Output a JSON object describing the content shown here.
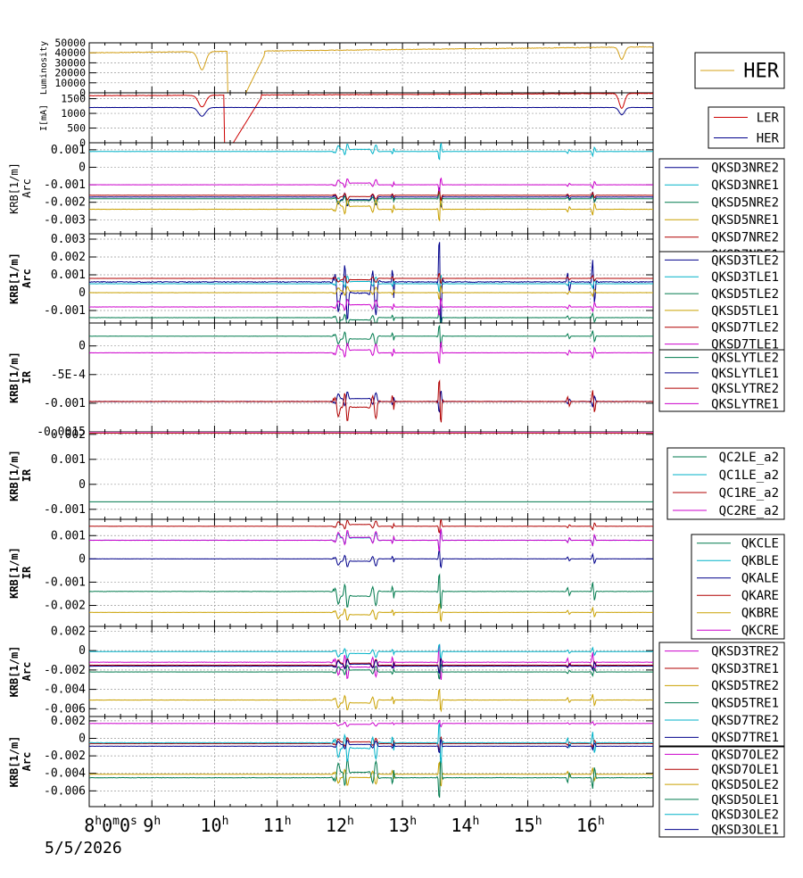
{
  "chart_data": {
    "type": "line",
    "time_axis": {
      "range_hours": [
        8,
        17
      ],
      "tick_labels": [
        {
          "h": 8,
          "text": "8",
          "sup": "h",
          "extra": "0",
          "extra_sup": "m",
          "extra2": "0",
          "extra2_sup": "s"
        },
        {
          "h": 9,
          "text": "9",
          "sup": "h"
        },
        {
          "h": 10,
          "text": "10",
          "sup": "h"
        },
        {
          "h": 11,
          "text": "11",
          "sup": "h"
        },
        {
          "h": 12,
          "text": "12",
          "sup": "h"
        },
        {
          "h": 13,
          "text": "13",
          "sup": "h"
        },
        {
          "h": 14,
          "text": "14",
          "sup": "h"
        },
        {
          "h": 15,
          "text": "15",
          "sup": "h"
        },
        {
          "h": 16,
          "text": "16",
          "sup": "h"
        }
      ],
      "date": "5/5/2026"
    },
    "panels": [
      {
        "id": "lum",
        "ylabel": [
          "Luminosity"
        ],
        "ylim": [
          0,
          50000
        ],
        "ticks": [
          0,
          10000,
          20000,
          30000,
          40000,
          50000
        ],
        "tick_labels": [
          "0",
          "10000",
          "20000",
          "30000",
          "40000",
          "50000"
        ],
        "series": [
          {
            "name": "HER",
            "color": "#d4a017",
            "base": 40000,
            "trend": 6000,
            "noise": 600,
            "seed": 3,
            "dips": [
              [
                9.8,
                0.08,
                -18000
              ]
            ],
            "gaps": [
              [
                10.2,
                10.5,
                0
              ]
            ],
            "ramp": [
              10.5,
              10.8,
              38000
            ],
            "late_dips": [
              [
                16.5,
                0.06,
                -12000
              ]
            ]
          }
        ],
        "legend": [
          "HER"
        ]
      },
      {
        "id": "cur",
        "ylabel": [
          "I[mA]"
        ],
        "ylim": [
          0,
          1700
        ],
        "ticks": [
          0,
          500,
          1000,
          1500
        ],
        "tick_labels": [
          "0",
          "500",
          "1000",
          "1500"
        ],
        "series": [
          {
            "name": "LER",
            "color": "#cc0000",
            "base": 1600,
            "trend": 80,
            "noise": 15,
            "seed": 5,
            "dips": [
              [
                9.8,
                0.08,
                -400
              ],
              [
                16.5,
                0.06,
                -500
              ]
            ],
            "gaps": [
              [
                10.15,
                10.3,
                0
              ]
            ],
            "ramp": [
              10.3,
              10.75,
              1550
            ]
          },
          {
            "name": "HER",
            "color": "#00008b",
            "base": 1200,
            "trend": 0,
            "noise": 8,
            "seed": 7,
            "dips": [
              [
                9.8,
                0.08,
                -300
              ],
              [
                16.5,
                0.06,
                -250
              ]
            ]
          }
        ],
        "legend": [
          "LER",
          "HER"
        ]
      },
      {
        "id": "arc1",
        "ylabel": [
          "KRB[1/m]",
          "Arc"
        ],
        "ylim": [
          -0.0038,
          0.0014
        ],
        "ticks": [
          -0.003,
          -0.002,
          -0.001,
          0,
          0.001
        ],
        "tick_labels": [
          "-0.003",
          "-0.002",
          "-0.001",
          "0",
          "0.001"
        ],
        "series": [
          {
            "name": "QKSD3NRE2",
            "color": "#00008b",
            "base": -0.0017,
            "amp": 0.0006,
            "seed": 11
          },
          {
            "name": "QKSD3NRE1",
            "color": "#00b2c8",
            "base": 0.0009,
            "amp": 0.0005,
            "seed": 12
          },
          {
            "name": "QKSD5NRE2",
            "color": "#007a4d",
            "base": -0.0018,
            "amp": 0.0004,
            "seed": 13
          },
          {
            "name": "QKSD5NRE1",
            "color": "#c9a000",
            "base": -0.0024,
            "amp": 0.0007,
            "seed": 14
          },
          {
            "name": "QKSD7NRE2",
            "color": "#b00000",
            "base": -0.0016,
            "amp": 0.0003,
            "seed": 15
          },
          {
            "name": "QKSD7NRE1",
            "color": "#cc00cc",
            "base": -0.001,
            "amp": 0.0004,
            "seed": 16
          }
        ],
        "legend": [
          "QKSD3NRE2",
          "QKSD3NRE1",
          "QKSD5NRE2",
          "QKSD5NRE1",
          "QKSD7NRE2",
          "QKSD7NRE1"
        ]
      },
      {
        "id": "arc2",
        "ylabel": [
          "KRB[1/m]",
          "Arc"
        ],
        "ylim": [
          -0.0017,
          0.0033
        ],
        "ticks": [
          -0.001,
          0,
          0.001,
          0.002,
          0.003
        ],
        "tick_labels": [
          "-0.001",
          "0",
          "0.001",
          "0.002",
          "0.003"
        ],
        "series": [
          {
            "name": "QKSD3TLE2",
            "color": "#00008b",
            "base": 0.0006,
            "amp": 0.0025,
            "seed": 21
          },
          {
            "name": "QKSD3TLE1",
            "color": "#00b2c8",
            "base": 0.0005,
            "amp": 0.0005,
            "seed": 22
          },
          {
            "name": "QKSD5TLE2",
            "color": "#007a4d",
            "base": -0.0014,
            "amp": 0.0005,
            "seed": 23
          },
          {
            "name": "QKSD5TLE1",
            "color": "#c9a000",
            "base": 0,
            "amp": 0.0004,
            "seed": 24
          },
          {
            "name": "QKSD7TLE2",
            "color": "#b00000",
            "base": 0.0008,
            "amp": 0.0003,
            "seed": 25
          },
          {
            "name": "QKSD7TLE1",
            "color": "#cc00cc",
            "base": -0.0008,
            "amp": 0.0005,
            "seed": 26
          }
        ],
        "legend": [
          "QKSD3TLE2",
          "QKSD3TLE1",
          "QKSD5TLE2",
          "QKSD5TLE1",
          "QKSD7TLE2",
          "QKSD7TLE1"
        ]
      },
      {
        "id": "ir1",
        "ylabel": [
          "KRB[1/m]",
          "IR"
        ],
        "ylim": [
          -0.0015,
          0.0004
        ],
        "ticks": [
          -0.0015,
          -0.001,
          -0.0005,
          0
        ],
        "tick_labels": [
          "-0.0015",
          "-0.001",
          "-5E-4",
          "0"
        ],
        "series": [
          {
            "name": "QKSLYTLE2",
            "color": "#007a4d",
            "base": 0.00017,
            "amp": 0.0002,
            "seed": 31
          },
          {
            "name": "QKSLYTLE1",
            "color": "#00008b",
            "base": -0.00097,
            "amp": 0.0002,
            "seed": 32
          },
          {
            "name": "QKSLYTRE2",
            "color": "#b00000",
            "base": -0.00097,
            "amp": 0.0004,
            "seed": 33
          },
          {
            "name": "QKSLYTRE1",
            "color": "#cc00cc",
            "base": -0.00012,
            "amp": 0.0002,
            "seed": 34
          }
        ],
        "legend": [
          "QKSLYTLE2",
          "QKSLYTLE1",
          "QKSLYTRE2",
          "QKSLYTRE1"
        ]
      },
      {
        "id": "ir2",
        "ylabel": [
          "KRB[1/m]",
          "IR"
        ],
        "ylim": [
          -0.0014,
          0.0021
        ],
        "ticks": [
          -0.001,
          0,
          0.001,
          0.002
        ],
        "tick_labels": [
          "-0.001",
          "0",
          "0.001",
          "0.002"
        ],
        "series": [
          {
            "name": "QC2LE_a2",
            "color": "#007a4d",
            "base": -0.0007,
            "amp": 0,
            "seed": 41
          },
          {
            "name": "QC1LE_a2",
            "color": "#00b2c8",
            "base": 0.0021,
            "amp": 0,
            "seed": 42
          },
          {
            "name": "QC1RE_a2",
            "color": "#b00000",
            "base": 0.00205,
            "amp": 0,
            "seed": 43
          },
          {
            "name": "QC2RE_a2",
            "color": "#cc00cc",
            "base": 0.0021,
            "amp": 0,
            "seed": 44
          }
        ],
        "legend": [
          "QC2LE_a2",
          "QC1LE_a2",
          "QC1RE_a2",
          "QC2RE_a2"
        ]
      },
      {
        "id": "ir3",
        "ylabel": [
          "KRB[1/m]",
          "IR"
        ],
        "ylim": [
          -0.0029,
          0.0017
        ],
        "ticks": [
          -0.002,
          -0.001,
          0,
          0.001
        ],
        "tick_labels": [
          "-0.002",
          "-0.001",
          "0",
          "0.001"
        ],
        "series": [
          {
            "name": "QKCLE",
            "color": "#007a4d",
            "base": -0.0014,
            "amp": 0.0008,
            "seed": 51
          },
          {
            "name": "QKBLE",
            "color": "#00b2c8",
            "base": 0.0008,
            "amp": 0.0004,
            "seed": 52
          },
          {
            "name": "QKALE",
            "color": "#00008b",
            "base": 0,
            "amp": 0.0004,
            "seed": 53
          },
          {
            "name": "QKARE",
            "color": "#b00000",
            "base": 0.0014,
            "amp": 0.0003,
            "seed": 54
          },
          {
            "name": "QKBRE",
            "color": "#c9a000",
            "base": -0.0023,
            "amp": 0.0004,
            "seed": 55
          },
          {
            "name": "QKCRE",
            "color": "#cc00cc",
            "base": 0.0008,
            "amp": 0.0005,
            "seed": 56
          }
        ],
        "legend": [
          "QKCLE",
          "QKBLE",
          "QKALE",
          "QKARE",
          "QKBRE",
          "QKCRE"
        ]
      },
      {
        "id": "arc3",
        "ylabel": [
          "KRB[1/m]",
          "Arc"
        ],
        "ylim": [
          -0.0068,
          0.0025
        ],
        "ticks": [
          -0.006,
          -0.004,
          -0.002,
          0,
          0.002
        ],
        "tick_labels": [
          "-0.006",
          "-0.004",
          "-0.002",
          "0",
          "0.002"
        ],
        "series": [
          {
            "name": "QKSD3TRE2",
            "color": "#cc00cc",
            "base": -0.0012,
            "amp": 0.002,
            "seed": 61
          },
          {
            "name": "QKSD3TRE1",
            "color": "#b00000",
            "base": -0.0015,
            "amp": 0.0008,
            "seed": 62
          },
          {
            "name": "QKSD5TRE2",
            "color": "#c9a000",
            "base": -0.0051,
            "amp": 0.0012,
            "seed": 63
          },
          {
            "name": "QKSD5TRE1",
            "color": "#007a4d",
            "base": -0.0022,
            "amp": 0.0008,
            "seed": 64
          },
          {
            "name": "QKSD7TRE2",
            "color": "#00b2c8",
            "base": -0.0001,
            "amp": 0.0008,
            "seed": 65
          },
          {
            "name": "QKSD7TRE1",
            "color": "#00008b",
            "base": -0.0016,
            "amp": 0.0008,
            "seed": 66
          }
        ],
        "legend": [
          "QKSD3TRE2",
          "QKSD3TRE1",
          "QKSD5TRE2",
          "QKSD5TRE1",
          "QKSD7TRE2",
          "QKSD7TRE1"
        ]
      },
      {
        "id": "arc4",
        "ylabel": [
          "KRB[1/m]",
          "Arc"
        ],
        "ylim": [
          -0.0078,
          0.0025
        ],
        "ticks": [
          -0.006,
          -0.004,
          -0.002,
          0,
          0.002
        ],
        "tick_labels": [
          "-0.006",
          "-0.004",
          "-0.002",
          "0",
          "0.002"
        ],
        "series": [
          {
            "name": "QKSD7OLE2",
            "color": "#cc00cc",
            "base": 0.0017,
            "amp": 0.0004,
            "seed": 71
          },
          {
            "name": "QKSD7OLE1",
            "color": "#b00000",
            "base": -0.0006,
            "amp": 0.0008,
            "seed": 72
          },
          {
            "name": "QKSD5OLE2",
            "color": "#c9a000",
            "base": -0.0041,
            "amp": 0.0015,
            "seed": 73
          },
          {
            "name": "QKSD5OLE1",
            "color": "#007a4d",
            "base": -0.0045,
            "amp": 0.0025,
            "seed": 74
          },
          {
            "name": "QKSD3OLE2",
            "color": "#00b2c8",
            "base": -0.0005,
            "amp": 0.0025,
            "seed": 75
          },
          {
            "name": "QKSD3OLE1",
            "color": "#00008b",
            "base": -0.0009,
            "amp": 0.0008,
            "seed": 76
          }
        ],
        "legend": [
          "QKSD7OLE2",
          "QKSD7OLE1",
          "QKSD5OLE2",
          "QKSD5OLE1",
          "QKSD3OLE2",
          "QKSD3OLE1"
        ]
      }
    ]
  }
}
